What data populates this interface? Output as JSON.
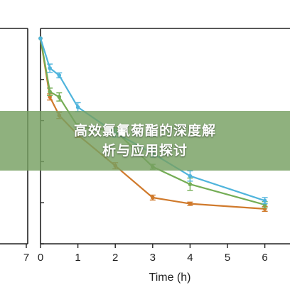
{
  "banner": {
    "title_line1": "高效氯氰菊酯的深度解",
    "title_line2": "析与应用探讨"
  },
  "chart_data": {
    "type": "line",
    "xlabel": "Time (h)",
    "ylabel": "",
    "title": "",
    "xlim": [
      0,
      6.35
    ],
    "ylim": [
      0,
      1
    ],
    "x_ticks": [
      0,
      1,
      2,
      3,
      4,
      5,
      6
    ],
    "y_ticks": [
      0,
      0.2,
      0.4,
      0.6,
      0.8
    ],
    "y_tick_labels_visible": false,
    "grid": false,
    "legend": "none",
    "series": [
      {
        "color": "#4fb4dc",
        "x": [
          0,
          0.25,
          0.5,
          1,
          2,
          3,
          4,
          6
        ],
        "y": [
          1.0,
          0.855,
          0.82,
          0.665,
          0.54,
          0.44,
          0.33,
          0.21
        ],
        "err": [
          0,
          0.02,
          0.012,
          0.022,
          0.02,
          0.018,
          0.025,
          0.015
        ]
      },
      {
        "color": "#74ad55",
        "x": [
          0,
          0.25,
          0.5,
          1,
          2,
          3,
          4,
          6
        ],
        "y": [
          1.0,
          0.74,
          0.715,
          0.57,
          0.55,
          0.375,
          0.29,
          0.19
        ],
        "err": [
          0,
          0.018,
          0.02,
          0.015,
          0.015,
          0.012,
          0.03,
          0.015
        ]
      },
      {
        "color": "#d07a2c",
        "x": [
          0,
          0.25,
          0.5,
          1,
          2,
          3,
          4,
          6
        ],
        "y": [
          1.0,
          0.715,
          0.625,
          0.53,
          0.38,
          0.225,
          0.195,
          0.17
        ],
        "err": [
          0,
          0.015,
          0.015,
          0.012,
          0.015,
          0.012,
          0.008,
          0.012
        ]
      }
    ]
  },
  "left_panel": {
    "x_tick_label": "7"
  },
  "colors": {
    "banner_bg": "#76a062",
    "axis": "#222222"
  }
}
